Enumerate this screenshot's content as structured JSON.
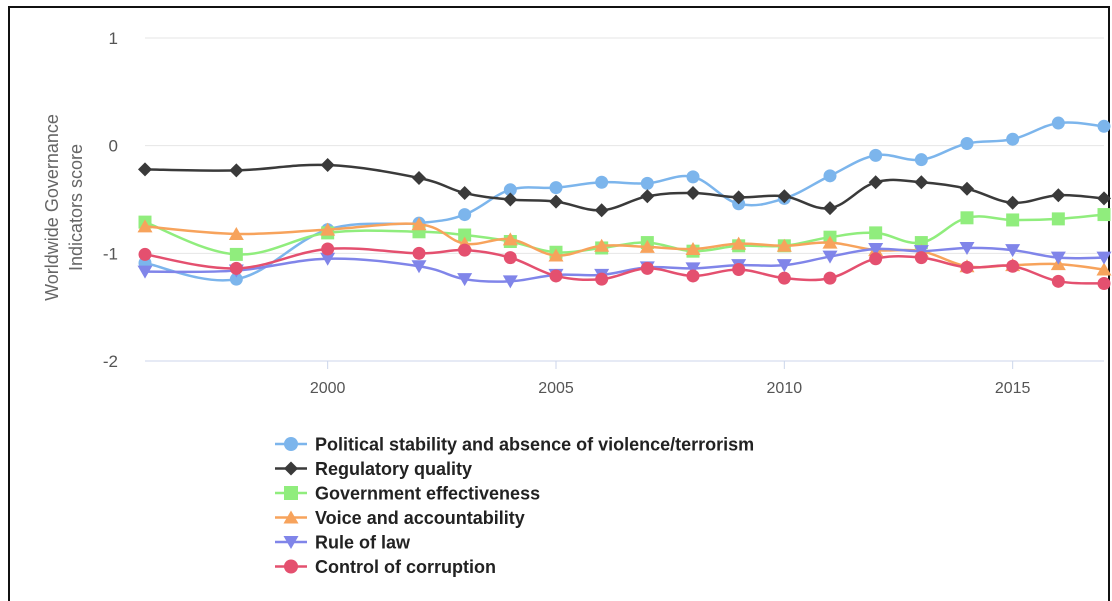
{
  "chart_data": {
    "type": "line",
    "title": "",
    "xlabel": "",
    "ylabel": "Worldwide Governance Indicators score",
    "ylabel_lines": [
      "Worldwide Governance",
      "Indicators score"
    ],
    "xlim": [
      1996,
      2017
    ],
    "ylim": [
      -2,
      1
    ],
    "y_ticks": [
      1,
      0,
      -1,
      -2
    ],
    "y_tick_labels": [
      "1",
      "0",
      "-1",
      "-2"
    ],
    "x_ticks": [
      2000,
      2005,
      2010,
      2015
    ],
    "x_tick_labels": [
      "2000",
      "2005",
      "2010",
      "2015"
    ],
    "grid": "horizontal",
    "legend_position": "bottom",
    "x": [
      1996,
      1998,
      2000,
      2002,
      2003,
      2004,
      2005,
      2006,
      2007,
      2008,
      2009,
      2010,
      2011,
      2012,
      2013,
      2014,
      2015,
      2016,
      2017
    ],
    "series": [
      {
        "name": "Political stability and absence of violence/terrorism",
        "color": "#7cb5ec",
        "marker": "circle",
        "values": [
          -1.09,
          -1.24,
          -0.78,
          -0.72,
          -0.64,
          -0.41,
          -0.39,
          -0.34,
          -0.35,
          -0.29,
          -0.54,
          -0.49,
          -0.28,
          -0.09,
          -0.13,
          0.02,
          0.06,
          0.21,
          0.18
        ]
      },
      {
        "name": "Regulatory quality",
        "color": "#3a3a3a",
        "marker": "diamond",
        "values": [
          -0.22,
          -0.23,
          -0.18,
          -0.3,
          -0.44,
          -0.5,
          -0.52,
          -0.6,
          -0.47,
          -0.44,
          -0.48,
          -0.47,
          -0.58,
          -0.34,
          -0.34,
          -0.4,
          -0.53,
          -0.46,
          -0.49
        ]
      },
      {
        "name": "Government effectiveness",
        "color": "#90ed7d",
        "marker": "square",
        "values": [
          -0.71,
          -1.01,
          -0.81,
          -0.8,
          -0.83,
          -0.89,
          -0.99,
          -0.95,
          -0.9,
          -0.98,
          -0.93,
          -0.93,
          -0.85,
          -0.81,
          -0.9,
          -0.67,
          -0.69,
          -0.68,
          -0.64
        ]
      },
      {
        "name": "Voice and accountability",
        "color": "#f7a35c",
        "marker": "triangle",
        "values": [
          -0.75,
          -0.82,
          -0.78,
          -0.73,
          -0.91,
          -0.87,
          -1.02,
          -0.93,
          -0.94,
          -0.96,
          -0.91,
          -0.93,
          -0.9,
          -0.97,
          -0.98,
          -1.12,
          -1.11,
          -1.1,
          -1.15
        ]
      },
      {
        "name": "Rule of law",
        "color": "#8085e9",
        "marker": "triangle-down",
        "values": [
          -1.17,
          -1.16,
          -1.05,
          -1.12,
          -1.24,
          -1.26,
          -1.2,
          -1.2,
          -1.13,
          -1.14,
          -1.11,
          -1.11,
          -1.03,
          -0.96,
          -0.98,
          -0.95,
          -0.97,
          -1.04,
          -1.04
        ]
      },
      {
        "name": "Control of corruption",
        "color": "#e4506f",
        "marker": "circle",
        "values": [
          -1.01,
          -1.14,
          -0.96,
          -1.0,
          -0.97,
          -1.04,
          -1.21,
          -1.24,
          -1.14,
          -1.21,
          -1.15,
          -1.23,
          -1.23,
          -1.05,
          -1.04,
          -1.13,
          -1.12,
          -1.26,
          -1.28
        ]
      }
    ]
  }
}
